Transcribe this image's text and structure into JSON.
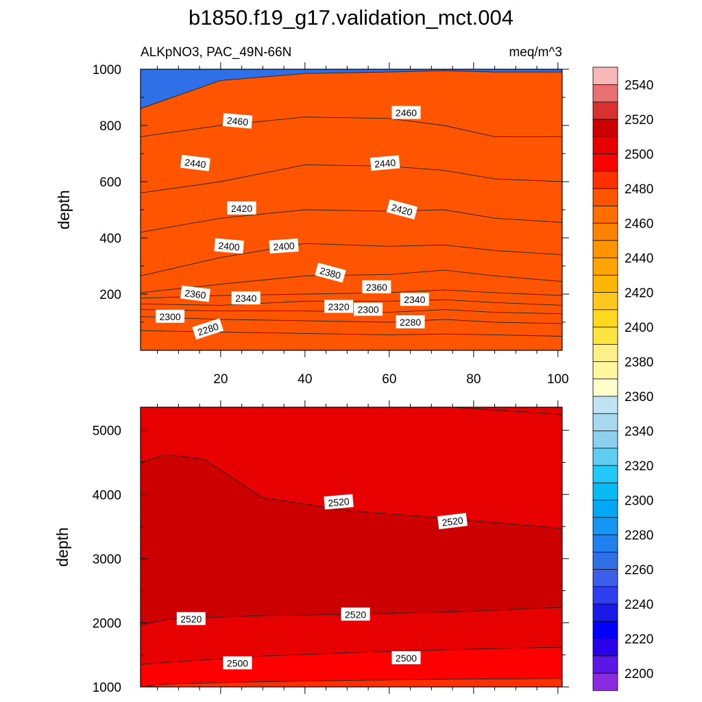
{
  "title": "b1850.f19_g17.validation_mct.004",
  "colorbar": {
    "levels": [
      2200,
      2210,
      2220,
      2230,
      2240,
      2250,
      2260,
      2270,
      2280,
      2290,
      2300,
      2310,
      2320,
      2330,
      2340,
      2350,
      2360,
      2370,
      2380,
      2390,
      2400,
      2410,
      2420,
      2430,
      2440,
      2450,
      2460,
      2470,
      2480,
      2490,
      2500,
      2510,
      2520,
      2530,
      2540,
      2550
    ],
    "colors": [
      "#8a2be2",
      "#5b17e8",
      "#2a00e8",
      "#0000ff",
      "#1a1ae8",
      "#2e3ff0",
      "#3d5ee8",
      "#2f6fe8",
      "#2080f0",
      "#1596f5",
      "#00a8f5",
      "#0abaf5",
      "#22c8f8",
      "#5ecdf0",
      "#8dcfee",
      "#a6d8ee",
      "#bfe3f3",
      "#ffffcc",
      "#fff7a0",
      "#fff088",
      "#ffe340",
      "#ffd820",
      "#ffc820",
      "#ffb600",
      "#ffa400",
      "#ff9300",
      "#ff8200",
      "#ff6e00",
      "#ff5500",
      "#ff3000",
      "#ff0000",
      "#e60000",
      "#cc0000",
      "#d93030",
      "#e87070",
      "#f9b8b8"
    ],
    "tick_labels": [
      "2200",
      "2220",
      "2240",
      "2260",
      "2280",
      "2300",
      "2320",
      "2340",
      "2360",
      "2380",
      "2400",
      "2420",
      "2440",
      "2460",
      "2480",
      "2500",
      "2520",
      "2540"
    ]
  },
  "chart_data": [
    {
      "type": "contour",
      "panel": "upper",
      "subtitle_left": "ALKpNO3, PAC_49N-66N",
      "subtitle_right": "meq/m^3",
      "ylabel": "depth",
      "xlim": [
        1,
        101
      ],
      "ylim": [
        1000,
        0
      ],
      "x_ticks": [
        "20",
        "40",
        "60",
        "80",
        "100"
      ],
      "y_ticks": [
        "200",
        "400",
        "600",
        "800",
        "1000"
      ],
      "x_tick_values": [
        20,
        40,
        60,
        80,
        100
      ],
      "y_tick_values": [
        200,
        400,
        600,
        800,
        1000
      ],
      "x_nodes": [
        1,
        20,
        40,
        60,
        73,
        85,
        101
      ],
      "contours": [
        {
          "level": 2280,
          "depths": [
            70,
            65,
            60,
            55,
            58,
            55,
            50
          ]
        },
        {
          "level": 2300,
          "depths": [
            120,
            110,
            105,
            100,
            110,
            100,
            95
          ]
        },
        {
          "level": 2320,
          "depths": [
            145,
            140,
            140,
            135,
            145,
            135,
            130
          ]
        },
        {
          "level": 2340,
          "depths": [
            165,
            160,
            175,
            175,
            180,
            170,
            160
          ]
        },
        {
          "level": 2360,
          "depths": [
            185,
            195,
            200,
            205,
            215,
            205,
            195
          ]
        },
        {
          "level": 2380,
          "depths": [
            205,
            235,
            265,
            270,
            285,
            265,
            245
          ]
        },
        {
          "level": 2400,
          "depths": [
            265,
            330,
            380,
            370,
            375,
            355,
            340
          ]
        },
        {
          "level": 2420,
          "depths": [
            420,
            470,
            500,
            495,
            500,
            470,
            455
          ]
        },
        {
          "level": 2440,
          "depths": [
            560,
            600,
            660,
            655,
            640,
            610,
            600
          ]
        },
        {
          "level": 2460,
          "depths": [
            760,
            800,
            830,
            825,
            800,
            760,
            760
          ]
        },
        {
          "level": 2480,
          "depths": [
            860,
            960,
            985,
            990,
            995,
            990,
            990
          ]
        }
      ],
      "contour_labels": [
        {
          "text": "2280",
          "x": 17,
          "y": 75,
          "angle": -18
        },
        {
          "text": "2300",
          "x": 8,
          "y": 120,
          "angle": 0
        },
        {
          "text": "2280",
          "x": 65,
          "y": 100,
          "angle": 0
        },
        {
          "text": "2340",
          "x": 26,
          "y": 185,
          "angle": 0
        },
        {
          "text": "2320",
          "x": 48,
          "y": 155,
          "angle": 0
        },
        {
          "text": "2300",
          "x": 55,
          "y": 145,
          "angle": 0
        },
        {
          "text": "2340",
          "x": 66,
          "y": 180,
          "angle": 0
        },
        {
          "text": "2360",
          "x": 14,
          "y": 200,
          "angle": 7
        },
        {
          "text": "2360",
          "x": 57,
          "y": 225,
          "angle": 0
        },
        {
          "text": "2380",
          "x": 46,
          "y": 275,
          "angle": 15
        },
        {
          "text": "2400",
          "x": 22,
          "y": 370,
          "angle": 5
        },
        {
          "text": "2400",
          "x": 35,
          "y": 370,
          "angle": -4
        },
        {
          "text": "2420",
          "x": 25,
          "y": 505,
          "angle": 0
        },
        {
          "text": "2420",
          "x": 63,
          "y": 500,
          "angle": 15
        },
        {
          "text": "2440",
          "x": 14,
          "y": 665,
          "angle": 7
        },
        {
          "text": "2440",
          "x": 59,
          "y": 665,
          "angle": -5
        },
        {
          "text": "2460",
          "x": 24,
          "y": 815,
          "angle": 5
        },
        {
          "text": "2460",
          "x": 64,
          "y": 845,
          "angle": 0
        }
      ]
    },
    {
      "type": "contour",
      "panel": "lower",
      "ylabel": "depth",
      "xlim": [
        1,
        101
      ],
      "ylim": [
        5360,
        1000
      ],
      "y_ticks": [
        "1000",
        "2000",
        "3000",
        "4000",
        "5000"
      ],
      "y_tick_values": [
        1000,
        2000,
        3000,
        4000,
        5000
      ],
      "x_tick_values": [
        20,
        40,
        60,
        80,
        100
      ],
      "x_nodes": [
        1,
        7,
        16,
        30,
        50,
        75,
        101
      ],
      "contours": [
        {
          "level": 2500,
          "depths": [
            1000,
            1040,
            1060,
            1080,
            1100,
            1120,
            1130
          ]
        },
        {
          "level": 2510,
          "depths": [
            1350,
            1380,
            1420,
            1480,
            1530,
            1580,
            1620
          ]
        },
        {
          "level": 2520,
          "depths": [
            1960,
            2050,
            2080,
            2110,
            2130,
            2170,
            2240
          ]
        },
        {
          "level": 2520,
          "depths": [
            4500,
            4620,
            4550,
            3950,
            3750,
            3620,
            3470
          ]
        },
        {
          "level": 2530,
          "depths": [
            5360,
            5360,
            5360,
            5360,
            5360,
            5360,
            5250
          ]
        }
      ],
      "fill_bands": [
        {
          "color_level": 2500,
          "between": "top-2500"
        },
        {
          "color_level": 2510,
          "between": "2500-2510"
        },
        {
          "color_level": 2520,
          "between": "2510-2520-deep"
        }
      ],
      "contour_labels": [
        {
          "text": "2500",
          "x": 24,
          "y": 1370,
          "angle": 0
        },
        {
          "text": "2500",
          "x": 64,
          "y": 1450,
          "angle": 0
        },
        {
          "text": "2520",
          "x": 13,
          "y": 2060,
          "angle": 0
        },
        {
          "text": "2520",
          "x": 52,
          "y": 2130,
          "angle": 0
        },
        {
          "text": "2520",
          "x": 48,
          "y": 3880,
          "angle": -5
        },
        {
          "text": "2520",
          "x": 75,
          "y": 3580,
          "angle": -7
        }
      ]
    }
  ]
}
